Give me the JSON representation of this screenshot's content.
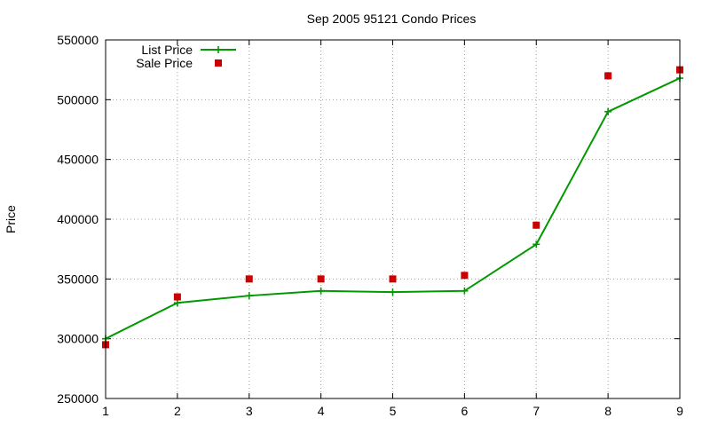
{
  "chart_data": {
    "type": "line",
    "title": "Sep 2005 95121 Condo Prices",
    "xlabel": "",
    "ylabel": "Price",
    "xlim": [
      1,
      9
    ],
    "ylim": [
      250000,
      550000
    ],
    "x_ticks": [
      1,
      2,
      3,
      4,
      5,
      6,
      7,
      8,
      9
    ],
    "y_ticks": [
      250000,
      300000,
      350000,
      400000,
      450000,
      500000,
      550000
    ],
    "grid": true,
    "legend_position": "top-left",
    "series": [
      {
        "name": "List Price",
        "style": "line-with-plus-markers",
        "color": "#009900",
        "x": [
          1,
          2,
          3,
          4,
          5,
          6,
          7,
          8,
          9
        ],
        "y": [
          300000,
          330000,
          336000,
          340000,
          339000,
          340000,
          379000,
          490000,
          518000
        ]
      },
      {
        "name": "Sale Price",
        "style": "square-markers",
        "color": "#cc0000",
        "x": [
          1,
          2,
          3,
          4,
          5,
          6,
          7,
          8,
          9
        ],
        "y": [
          295000,
          335000,
          350000,
          350000,
          350000,
          353000,
          395000,
          520000,
          525000
        ]
      }
    ]
  }
}
